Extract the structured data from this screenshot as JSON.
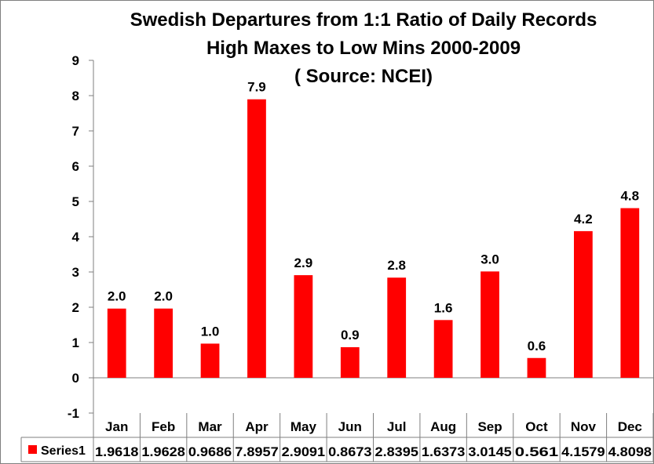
{
  "chart_data": {
    "type": "bar",
    "title_lines": [
      "Swedish Departures from 1:1 Ratio of Daily Records",
      "High Maxes to Low Mins 2000-2009",
      "( Source: NCEI)"
    ],
    "categories": [
      "Jan",
      "Feb",
      "Mar",
      "Apr",
      "May",
      "Jun",
      "Jul",
      "Aug",
      "Sep",
      "Oct",
      "Nov",
      "Dec"
    ],
    "series": [
      {
        "name": "Series1",
        "color": "#ff0000",
        "values": [
          1.9618,
          1.9628,
          0.9686,
          7.8957,
          2.9091,
          0.8673,
          2.8395,
          1.6373,
          3.0145,
          0.561,
          4.1579,
          4.8098
        ],
        "value_labels": [
          "2.0",
          "2.0",
          "1.0",
          "7.9",
          "2.9",
          "0.9",
          "2.8",
          "1.6",
          "3.0",
          "0.6",
          "4.2",
          "4.8"
        ],
        "table_values": [
          "1.9618",
          "1.9628",
          "0.9686",
          "7.8957",
          "2.9091",
          "0.8673",
          "2.8395",
          "1.6373",
          "3.0145",
          "0.561",
          "4.1579",
          "4.8098"
        ]
      }
    ],
    "ylim": [
      -1,
      9
    ],
    "yticks": [
      "-1",
      "0",
      "1",
      "2",
      "3",
      "4",
      "5",
      "6",
      "7",
      "8",
      "9"
    ],
    "xlabel": "",
    "ylabel": "",
    "grid": false,
    "legend": "data-table-left",
    "colors": {
      "bar": "#ff0000",
      "axis": "#7f7f7f",
      "text": "#000000",
      "background": "#ffffff"
    }
  }
}
